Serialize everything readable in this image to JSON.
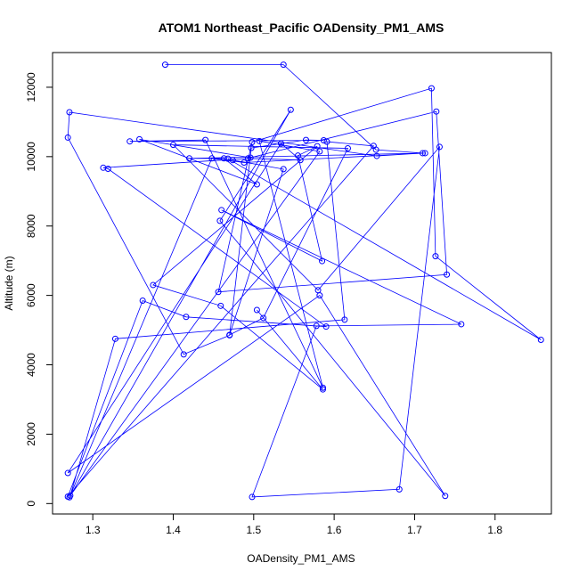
{
  "chart_data": {
    "type": "line",
    "title": "ATOM1 Northeast_Pacific OADensity_PM1_AMS",
    "xlabel": "OADensity_PM1_AMS",
    "ylabel": "Altitude (m)",
    "xlim": [
      1.25,
      1.87
    ],
    "ylim": [
      -300,
      13000
    ],
    "xticks": [
      1.3,
      1.4,
      1.5,
      1.6,
      1.7,
      1.8
    ],
    "yticks": [
      0,
      2000,
      4000,
      6000,
      8000,
      10000,
      12000
    ],
    "grid": false,
    "legend": "none",
    "series_color": "#0000ff",
    "marker": "open-circle",
    "series": [
      {
        "x": [
          1.39,
          1.537,
          1.652,
          1.71,
          1.653,
          1.271,
          1.269,
          1.413,
          1.47,
          1.497,
          1.565,
          1.587,
          1.346,
          1.44,
          1.586,
          1.507,
          1.582,
          1.272,
          1.328,
          1.613,
          1.591,
          1.649,
          1.269,
          1.362,
          1.416,
          1.59,
          1.319,
          1.313,
          1.493,
          1.558,
          1.534,
          1.269,
          1.582,
          1.738,
          1.458,
          1.546,
          1.271,
          1.448,
          1.488,
          1.713,
          1.42,
          1.463,
          1.504,
          1.358,
          1.496,
          1.727,
          1.74,
          1.456,
          1.498,
          1.721,
          1.726,
          1.857,
          1.468,
          1.474,
          1.537,
          1.47,
          1.512,
          1.617,
          1.4,
          1.58,
          1.731,
          1.681,
          1.498,
          1.578,
          1.758,
          1.46,
          1.585,
          1.555,
          1.579,
          1.375,
          1.459,
          1.586,
          1.504
        ],
        "y": [
          12650,
          12650,
          10200,
          10100,
          10020,
          11280,
          10550,
          4300,
          4850,
          10250,
          10480,
          10470,
          10440,
          10480,
          3340,
          10450,
          10150,
          230,
          4750,
          5300,
          10430,
          10310,
          200,
          5850,
          5380,
          5100,
          9650,
          9680,
          9950,
          9900,
          10380,
          880,
          6000,
          220,
          8150,
          11350,
          180,
          9950,
          9830,
          10100,
          9950,
          9950,
          9200,
          10500,
          9970,
          11300,
          6600,
          6100,
          10420,
          11970,
          7130,
          4720,
          9940,
          9900,
          9640,
          4860,
          5350,
          10240,
          10340,
          6150,
          10280,
          410,
          190,
          5120,
          5170,
          8460,
          6990,
          10030,
          10300,
          6300,
          5700,
          3290,
          5580
        ]
      }
    ]
  }
}
